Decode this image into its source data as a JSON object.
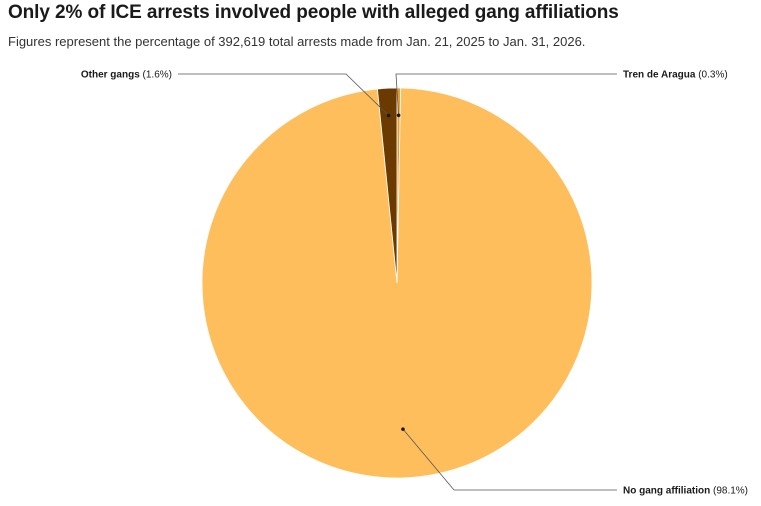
{
  "title": "Only 2% of ICE arrests involved people with alleged gang affiliations",
  "subtitle": "Figures represent the percentage of 392,619 total arrests made from Jan. 21, 2025 to Jan. 31, 2026.",
  "chart_data": {
    "type": "pie",
    "title": "Only 2% of ICE arrests involved people with alleged gang affiliations",
    "subtitle": "Figures represent the percentage of 392,619 total arrests made from Jan. 21, 2025 to Jan. 31, 2026.",
    "slices": [
      {
        "label": "Tren de Aragua",
        "value": 0.3,
        "value_label": "(0.3%)",
        "color": "#e89a2c"
      },
      {
        "label": "No gang affiliation",
        "value": 98.1,
        "value_label": "(98.1%)",
        "color": "#ffbe5c"
      },
      {
        "label": "Other gangs",
        "value": 1.6,
        "value_label": "(1.6%)",
        "color": "#6b3a00"
      }
    ],
    "start_angle": "12 o'clock, clockwise",
    "legend": "callout labels with leader lines"
  }
}
